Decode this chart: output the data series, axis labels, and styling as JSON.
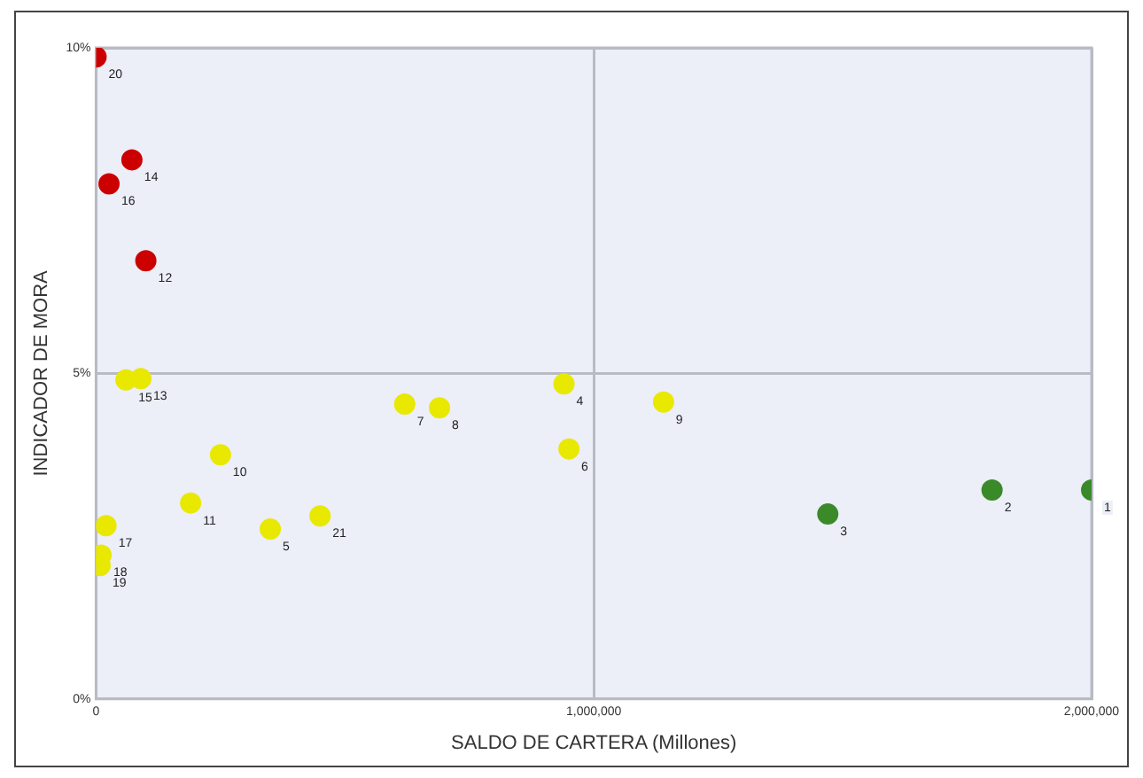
{
  "chart_data": {
    "type": "scatter",
    "xlabel": "SALDO DE CARTERA (Millones)",
    "ylabel": "INDICADOR DE MORA",
    "series": [
      {
        "color": "#cc0000",
        "x": [
          0,
          72000,
          26000,
          100000
        ],
        "values": [
          9.86,
          8.28,
          7.91,
          6.73
        ]
      },
      {
        "color": "#e8e800",
        "x": [
          60000,
          90000,
          620000,
          690000,
          940000,
          950000,
          1140000,
          250000,
          190000,
          350000,
          450000,
          20000,
          10000,
          8000
        ],
        "values": [
          4.9,
          4.92,
          4.53,
          4.47,
          4.84,
          3.84,
          4.56,
          3.75,
          3.01,
          2.61,
          2.81,
          2.66,
          2.21,
          2.05
        ]
      },
      {
        "color": "#3a8a2a",
        "x": [
          1470000,
          1800000,
          2000000
        ],
        "values": [
          2.84,
          3.21,
          3.21
        ]
      }
    ],
    "xlim": [
      0,
      2000000
    ],
    "ylim": [
      0,
      10
    ],
    "xticks": [
      {
        "value": 0,
        "label": "0"
      },
      {
        "value": 1000000,
        "label": "1,000,000"
      },
      {
        "value": 2000000,
        "label": "2,000,000"
      }
    ],
    "yticks": [
      {
        "value": 0,
        "label": "0%"
      },
      {
        "value": 5,
        "label": "5%"
      },
      {
        "value": 10,
        "label": "10%"
      }
    ],
    "grid": true,
    "marker": "circle",
    "annotations": [
      {
        "text": "20",
        "x": 0,
        "y": 9.86
      },
      {
        "text": "14",
        "x": 72000,
        "y": 8.28
      },
      {
        "text": "16",
        "x": 26000,
        "y": 7.91
      },
      {
        "text": "12",
        "x": 100000,
        "y": 6.73
      },
      {
        "text": "15",
        "x": 60000,
        "y": 4.9
      },
      {
        "text": "13",
        "x": 90000,
        "y": 4.92
      },
      {
        "text": "7",
        "x": 620000,
        "y": 4.53
      },
      {
        "text": "8",
        "x": 690000,
        "y": 4.47
      },
      {
        "text": "4",
        "x": 940000,
        "y": 4.84
      },
      {
        "text": "6",
        "x": 950000,
        "y": 3.84
      },
      {
        "text": "9",
        "x": 1140000,
        "y": 4.56
      },
      {
        "text": "10",
        "x": 250000,
        "y": 3.75
      },
      {
        "text": "11",
        "x": 190000,
        "y": 3.01
      },
      {
        "text": "5",
        "x": 350000,
        "y": 2.61
      },
      {
        "text": "21",
        "x": 450000,
        "y": 2.81
      },
      {
        "text": "17",
        "x": 20000,
        "y": 2.66
      },
      {
        "text": "18",
        "x": 10000,
        "y": 2.21
      },
      {
        "text": "19",
        "x": 8000,
        "y": 2.05
      },
      {
        "text": "3",
        "x": 1470000,
        "y": 2.84
      },
      {
        "text": "2",
        "x": 1800000,
        "y": 3.21
      },
      {
        "text": "1",
        "x": 2000000,
        "y": 3.21
      }
    ]
  }
}
